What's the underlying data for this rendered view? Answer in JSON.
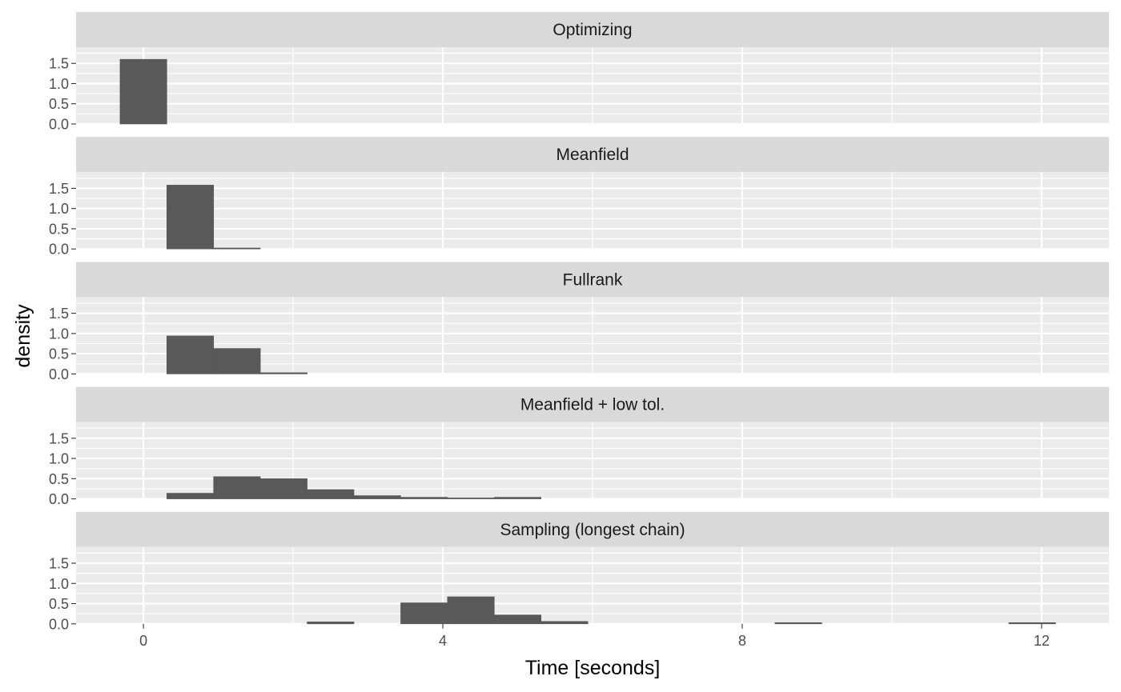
{
  "chart_data": {
    "type": "bar",
    "subtype": "faceted-histogram",
    "title": "",
    "xlabel": "Time [seconds]",
    "ylabel": "density",
    "xlim": [
      -0.9,
      12.9
    ],
    "ylim": [
      0,
      1.9
    ],
    "x_ticks": [
      0,
      4,
      8,
      12
    ],
    "y_ticks": [
      0,
      0.5,
      1,
      1.5
    ],
    "y_tick_labels": [
      "0.0",
      "0.5",
      "1.0",
      "1.5"
    ],
    "bin_width": 0.625,
    "bar_color": "#595959",
    "panel_background": "#ebebeb",
    "strip_background": "#d9d9d9",
    "grid": true,
    "facets": [
      {
        "name": "Optimizing",
        "bins": [
          {
            "x0": -0.3125,
            "x1": 0.3125,
            "density": 1.6
          }
        ]
      },
      {
        "name": "Meanfield",
        "bins": [
          {
            "x0": 0.3125,
            "x1": 0.9375,
            "density": 1.58
          },
          {
            "x0": 0.9375,
            "x1": 1.5625,
            "density": 0.02
          }
        ]
      },
      {
        "name": "Fullrank",
        "bins": [
          {
            "x0": 0.3125,
            "x1": 0.9375,
            "density": 0.94
          },
          {
            "x0": 0.9375,
            "x1": 1.5625,
            "density": 0.63
          },
          {
            "x0": 1.5625,
            "x1": 2.1875,
            "density": 0.03
          }
        ]
      },
      {
        "name": "Meanfield + low tol.",
        "bins": [
          {
            "x0": 0.3125,
            "x1": 0.9375,
            "density": 0.14
          },
          {
            "x0": 0.9375,
            "x1": 1.5625,
            "density": 0.55
          },
          {
            "x0": 1.5625,
            "x1": 2.1875,
            "density": 0.5
          },
          {
            "x0": 2.1875,
            "x1": 2.8125,
            "density": 0.23
          },
          {
            "x0": 2.8125,
            "x1": 3.4375,
            "density": 0.08
          },
          {
            "x0": 3.4375,
            "x1": 4.0625,
            "density": 0.04
          },
          {
            "x0": 4.0625,
            "x1": 4.6875,
            "density": 0.02
          },
          {
            "x0": 4.6875,
            "x1": 5.3125,
            "density": 0.04
          }
        ]
      },
      {
        "name": "Sampling (longest chain)",
        "bins": [
          {
            "x0": 2.1875,
            "x1": 2.8125,
            "density": 0.05
          },
          {
            "x0": 3.4375,
            "x1": 4.0625,
            "density": 0.52
          },
          {
            "x0": 4.0625,
            "x1": 4.6875,
            "density": 0.67
          },
          {
            "x0": 4.6875,
            "x1": 5.3125,
            "density": 0.22
          },
          {
            "x0": 5.3125,
            "x1": 5.9375,
            "density": 0.06
          },
          {
            "x0": 8.4375,
            "x1": 9.0625,
            "density": 0.03
          },
          {
            "x0": 11.5625,
            "x1": 12.1875,
            "density": 0.03
          }
        ]
      }
    ]
  }
}
